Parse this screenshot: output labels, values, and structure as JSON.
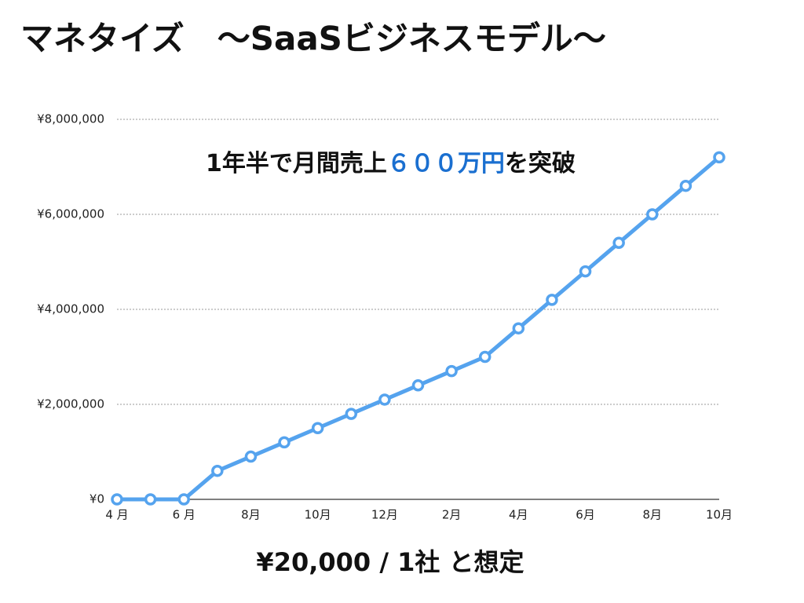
{
  "chart_data": {
    "type": "line",
    "title": "マネタイズ　〜SaaSビジネスモデル〜",
    "annotation": [
      "1年半で月間売上",
      "６００万円",
      "を突破"
    ],
    "annotation_highlight_color": "#1a6fd0",
    "footnote": "¥20,000 / 1社 と想定",
    "categories": [
      "4 月",
      null,
      "6 月",
      null,
      "8月",
      null,
      "10月",
      null,
      "12月",
      null,
      "2月",
      null,
      "4月",
      null,
      "6月",
      null,
      "8月",
      null,
      "10月"
    ],
    "series": [
      {
        "color": "#55a3ee",
        "values": [
          0,
          0,
          0,
          600000,
          900000,
          1200000,
          1500000,
          1800000,
          2100000,
          2400000,
          2700000,
          3000000,
          3600000,
          4200000,
          4800000,
          5400000,
          6000000,
          6600000,
          7200000
        ]
      }
    ],
    "ylim": [
      0,
      8000000
    ],
    "yticks": [
      {
        "value": 0,
        "label": "¥0"
      },
      {
        "value": 2000000,
        "label": "¥2,000,000"
      },
      {
        "value": 4000000,
        "label": "¥4,000,000"
      },
      {
        "value": 6000000,
        "label": "¥6,000,000"
      },
      {
        "value": 8000000,
        "label": "¥8,000,000"
      }
    ],
    "grid": true
  }
}
